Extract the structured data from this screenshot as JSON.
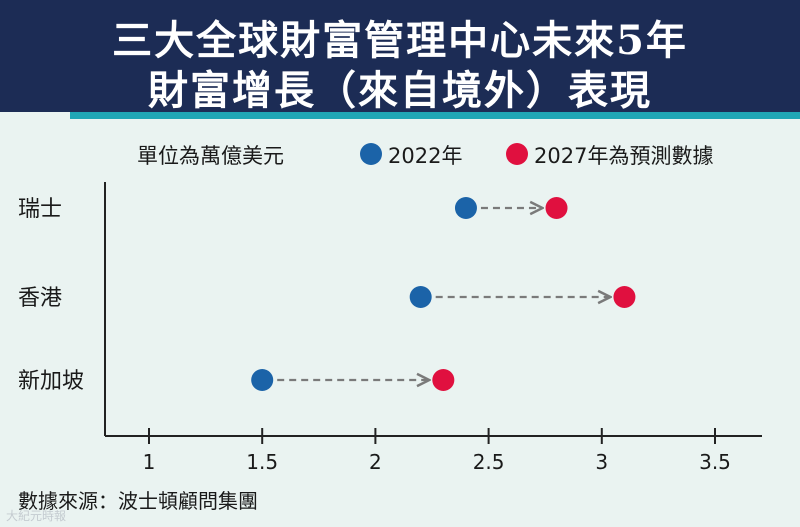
{
  "header": {
    "title_line1": "三大全球財富管理中心未來5年",
    "title_line2": "財富增長（來自境外）表現"
  },
  "legend": {
    "unit": "單位為萬億美元",
    "series1_label": "2022年",
    "series2_label": "2027年為預測數據"
  },
  "source": "數據來源：波士頓顧問集團",
  "watermark": "大紀元時報",
  "colors": {
    "header_bg": "#1c2c55",
    "accent": "#1fa6b5",
    "series_2022": "#1b63a8",
    "series_2027": "#e0103f",
    "arrow": "#7a7a7a",
    "axis": "#222222"
  },
  "chart_data": {
    "type": "dumbbell",
    "categories": [
      "瑞士",
      "香港",
      "新加坡"
    ],
    "series": [
      {
        "name": "2022年",
        "values": [
          2.4,
          2.2,
          1.5
        ]
      },
      {
        "name": "2027年為預測數據",
        "values": [
          2.8,
          3.1,
          2.3
        ]
      }
    ],
    "xlabel": "",
    "ylabel": "",
    "xticks": [
      1,
      1.5,
      2,
      2.5,
      3,
      3.5
    ],
    "xtick_labels": [
      "1",
      "1.5",
      "2",
      "2.5",
      "3",
      "3.5"
    ],
    "xlim": [
      0.8,
      3.7
    ],
    "grid": false,
    "unit": "萬億美元"
  }
}
